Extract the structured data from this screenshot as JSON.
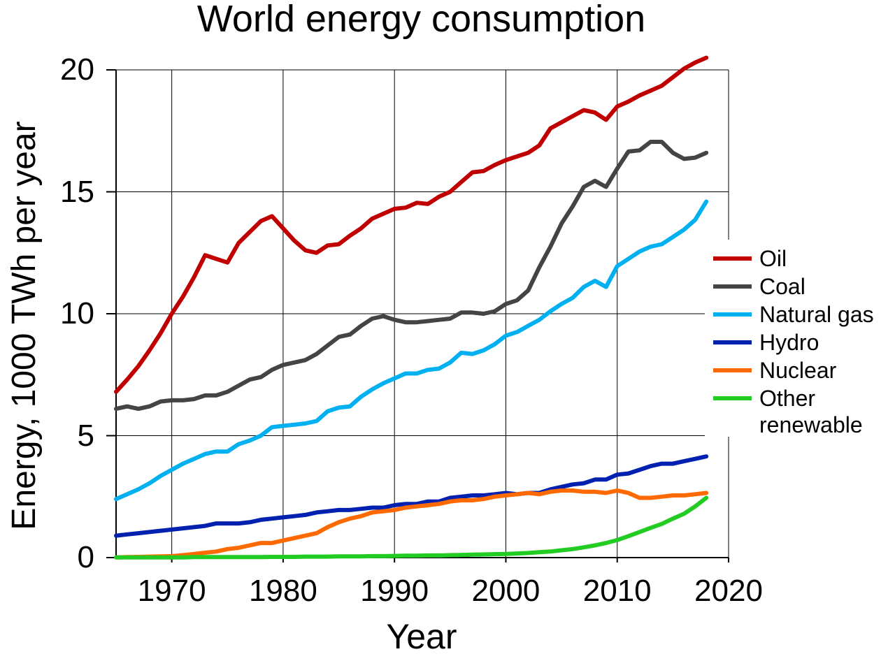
{
  "chart_data": {
    "type": "line",
    "title": "World energy consumption",
    "xlabel": "Year",
    "ylabel": "Energy, 1000 TWh per year",
    "xlim": [
      1965,
      2020
    ],
    "ylim": [
      0,
      20
    ],
    "x_ticks": [
      "1970",
      "1980",
      "1990",
      "2000",
      "2010",
      "2020"
    ],
    "y_ticks": [
      "0",
      "5",
      "10",
      "15",
      "20"
    ],
    "grid": true,
    "legend_position": "right",
    "x": [
      1965,
      1966,
      1967,
      1968,
      1969,
      1970,
      1971,
      1972,
      1973,
      1974,
      1975,
      1976,
      1977,
      1978,
      1979,
      1980,
      1981,
      1982,
      1983,
      1984,
      1985,
      1986,
      1987,
      1988,
      1989,
      1990,
      1991,
      1992,
      1993,
      1994,
      1995,
      1996,
      1997,
      1998,
      1999,
      2000,
      2001,
      2002,
      2003,
      2004,
      2005,
      2006,
      2007,
      2008,
      2009,
      2010,
      2011,
      2012,
      2013,
      2014,
      2015,
      2016,
      2017,
      2018
    ],
    "series": [
      {
        "name": "Oil",
        "color": "#c00000",
        "values": [
          6.8,
          7.3,
          7.85,
          8.5,
          9.2,
          10.0,
          10.7,
          11.5,
          12.4,
          12.25,
          12.1,
          12.9,
          13.35,
          13.8,
          14.0,
          13.5,
          13.0,
          12.6,
          12.5,
          12.8,
          12.85,
          13.2,
          13.5,
          13.9,
          14.1,
          14.3,
          14.35,
          14.55,
          14.5,
          14.8,
          15.0,
          15.4,
          15.8,
          15.85,
          16.1,
          16.3,
          16.45,
          16.6,
          16.9,
          17.6,
          17.85,
          18.1,
          18.35,
          18.25,
          17.95,
          18.5,
          18.7,
          18.95,
          19.15,
          19.35,
          19.7,
          20.05,
          20.3,
          20.5
        ]
      },
      {
        "name": "Coal",
        "color": "#444444",
        "values": [
          6.1,
          6.2,
          6.1,
          6.2,
          6.4,
          6.45,
          6.45,
          6.5,
          6.65,
          6.65,
          6.8,
          7.05,
          7.3,
          7.4,
          7.7,
          7.9,
          8.0,
          8.1,
          8.35,
          8.7,
          9.05,
          9.15,
          9.5,
          9.8,
          9.9,
          9.75,
          9.65,
          9.65,
          9.7,
          9.75,
          9.8,
          10.05,
          10.05,
          10.0,
          10.1,
          10.4,
          10.55,
          10.95,
          11.9,
          12.75,
          13.7,
          14.4,
          15.2,
          15.45,
          15.2,
          15.95,
          16.65,
          16.7,
          17.05,
          17.05,
          16.6,
          16.35,
          16.4,
          16.6
        ]
      },
      {
        "name": "Natural gas",
        "color": "#00b0f0",
        "values": [
          2.4,
          2.6,
          2.8,
          3.05,
          3.35,
          3.6,
          3.85,
          4.05,
          4.25,
          4.35,
          4.35,
          4.65,
          4.8,
          5.0,
          5.35,
          5.4,
          5.45,
          5.5,
          5.6,
          6.0,
          6.15,
          6.2,
          6.6,
          6.9,
          7.15,
          7.35,
          7.55,
          7.55,
          7.7,
          7.75,
          8.0,
          8.4,
          8.35,
          8.5,
          8.75,
          9.1,
          9.25,
          9.5,
          9.75,
          10.1,
          10.4,
          10.65,
          11.1,
          11.35,
          11.1,
          11.95,
          12.25,
          12.55,
          12.75,
          12.85,
          13.15,
          13.45,
          13.85,
          14.6
        ]
      },
      {
        "name": "Hydro",
        "color": "#0020b0",
        "values": [
          0.9,
          0.95,
          1.0,
          1.05,
          1.1,
          1.15,
          1.2,
          1.25,
          1.3,
          1.4,
          1.4,
          1.4,
          1.45,
          1.55,
          1.6,
          1.65,
          1.7,
          1.75,
          1.85,
          1.9,
          1.95,
          1.95,
          2.0,
          2.05,
          2.05,
          2.15,
          2.2,
          2.2,
          2.3,
          2.3,
          2.45,
          2.5,
          2.55,
          2.55,
          2.6,
          2.65,
          2.6,
          2.65,
          2.65,
          2.8,
          2.9,
          3.0,
          3.05,
          3.2,
          3.2,
          3.4,
          3.45,
          3.6,
          3.75,
          3.85,
          3.85,
          3.95,
          4.05,
          4.15
        ]
      },
      {
        "name": "Nuclear",
        "color": "#ff6a00",
        "values": [
          0.01,
          0.02,
          0.03,
          0.04,
          0.05,
          0.06,
          0.1,
          0.15,
          0.2,
          0.25,
          0.35,
          0.4,
          0.5,
          0.6,
          0.6,
          0.7,
          0.8,
          0.9,
          1.0,
          1.25,
          1.45,
          1.6,
          1.7,
          1.85,
          1.9,
          1.95,
          2.05,
          2.1,
          2.15,
          2.2,
          2.3,
          2.35,
          2.35,
          2.4,
          2.5,
          2.55,
          2.6,
          2.65,
          2.6,
          2.7,
          2.75,
          2.75,
          2.7,
          2.7,
          2.65,
          2.75,
          2.65,
          2.45,
          2.45,
          2.5,
          2.55,
          2.55,
          2.6,
          2.65
        ]
      },
      {
        "name": "Other\nrenewable",
        "color": "#22cc22",
        "values": [
          0.01,
          0.01,
          0.01,
          0.01,
          0.01,
          0.01,
          0.01,
          0.02,
          0.02,
          0.02,
          0.02,
          0.02,
          0.02,
          0.02,
          0.03,
          0.03,
          0.03,
          0.04,
          0.04,
          0.04,
          0.05,
          0.05,
          0.05,
          0.06,
          0.06,
          0.07,
          0.08,
          0.08,
          0.09,
          0.09,
          0.1,
          0.11,
          0.12,
          0.13,
          0.14,
          0.15,
          0.17,
          0.19,
          0.22,
          0.25,
          0.3,
          0.35,
          0.42,
          0.5,
          0.6,
          0.72,
          0.88,
          1.05,
          1.22,
          1.38,
          1.6,
          1.8,
          2.1,
          2.45
        ]
      }
    ]
  }
}
